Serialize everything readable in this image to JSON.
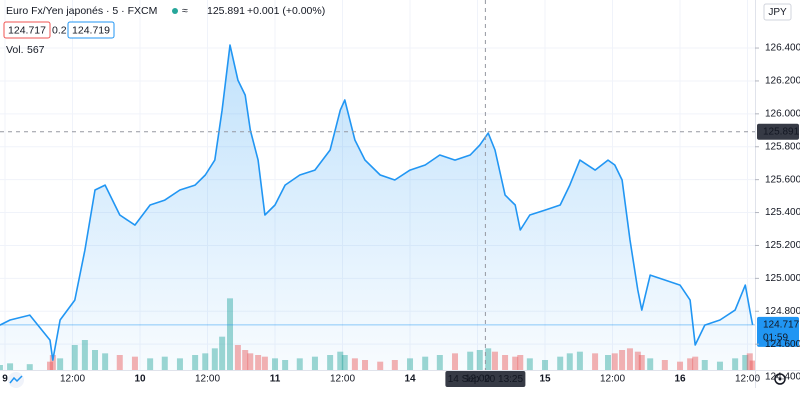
{
  "chart_data": {
    "type": "area",
    "title": "Euro Fx/Yen japonés · 5 · FXCM",
    "legend_price": 125.891,
    "legend_change": "+0.001 (+0.00%)",
    "bid": 124.717,
    "spread": 0.2,
    "ask": 124.719,
    "volume_title": "Vol.",
    "volume_last": 567,
    "currency": "JPY",
    "color": "#2196f3",
    "grid": true,
    "x": [
      -0.9,
      0.9,
      4.4,
      8.0,
      8.5,
      9.8,
      12.4,
      14.2,
      16.0,
      17.8,
      20.4,
      23.1,
      25.8,
      28.4,
      31.1,
      33.8,
      35.6,
      37.3,
      38.6,
      40.0,
      41.4,
      42.7,
      43.6,
      45.0,
      46.2,
      48.0,
      49.8,
      52.4,
      55.1,
      57.8,
      59.6,
      60.4,
      62.2,
      64.0,
      66.7,
      69.3,
      72.0,
      74.7,
      77.3,
      80.0,
      82.7,
      84.4,
      85.9,
      87.1,
      88.9,
      90.7,
      91.6,
      93.3,
      96.0,
      98.7,
      100.4,
      102.2,
      104.9,
      107.2,
      108.4,
      109.7,
      111.1,
      112.5,
      113.2,
      114.7,
      117.3,
      120.0,
      121.8,
      122.7,
      124.4,
      127.1,
      129.8,
      131.6,
      132.4,
      132.9
    ],
    "values": [
      124.716,
      124.747,
      124.777,
      124.625,
      124.503,
      124.747,
      124.868,
      125.172,
      125.537,
      125.567,
      125.385,
      125.324,
      125.446,
      125.476,
      125.537,
      125.567,
      125.628,
      125.719,
      126.023,
      126.418,
      126.205,
      126.114,
      125.902,
      125.719,
      125.385,
      125.446,
      125.567,
      125.628,
      125.658,
      125.78,
      126.023,
      126.084,
      125.841,
      125.719,
      125.628,
      125.598,
      125.658,
      125.689,
      125.75,
      125.719,
      125.75,
      125.81,
      125.883,
      125.78,
      125.506,
      125.446,
      125.294,
      125.385,
      125.415,
      125.446,
      125.567,
      125.719,
      125.658,
      125.719,
      125.689,
      125.598,
      125.233,
      124.929,
      124.807,
      125.02,
      124.99,
      124.959,
      124.868,
      124.595,
      124.716,
      124.747,
      124.807,
      124.959,
      124.807,
      124.717
    ],
    "volumes": [
      300,
      400,
      350,
      500,
      900,
      700,
      1500,
      1800,
      1200,
      1000,
      900,
      800,
      700,
      800,
      700,
      900,
      1000,
      1300,
      2000,
      4300,
      1500,
      1200,
      1000,
      900,
      800,
      700,
      600,
      700,
      800,
      900,
      1100,
      900,
      700,
      600,
      500,
      600,
      700,
      800,
      900,
      1000,
      1100,
      1200,
      1300,
      1100,
      900,
      800,
      900,
      700,
      600,
      800,
      1000,
      1100,
      1000,
      900,
      1000,
      1200,
      1300,
      1100,
      900,
      700,
      600,
      500,
      700,
      800,
      600,
      500,
      700,
      900,
      1000,
      567
    ],
    "vlim": [
      0,
      6000
    ],
    "xlim": [
      -0.89,
      133.33
    ],
    "xticks": [
      {
        "value": 0,
        "label": "9"
      },
      {
        "value": 12,
        "label": "12:00"
      },
      {
        "value": 24,
        "label": "10"
      },
      {
        "value": 36,
        "label": "12:00"
      },
      {
        "value": 48,
        "label": "11"
      },
      {
        "value": 60,
        "label": "12:00"
      },
      {
        "value": 72,
        "label": "14"
      },
      {
        "value": 84,
        "label": "12:00"
      },
      {
        "value": 96,
        "label": "15"
      },
      {
        "value": 108,
        "label": "12:00"
      },
      {
        "value": 120,
        "label": "16"
      },
      {
        "value": 132,
        "label": "12:00"
      }
    ],
    "ylim": [
      124.443,
      126.692
    ],
    "yticks": [
      {
        "value": 124.4,
        "label": "124.400"
      },
      {
        "value": 124.6,
        "label": "124.600"
      },
      {
        "value": 124.8,
        "label": "124.800"
      },
      {
        "value": 125,
        "label": "125.000"
      },
      {
        "value": 125.2,
        "label": "125.200"
      },
      {
        "value": 125.4,
        "label": "125.400"
      },
      {
        "value": 125.6,
        "label": "125.600"
      },
      {
        "value": 125.8,
        "label": "125.800"
      },
      {
        "value": 126,
        "label": "126.000"
      },
      {
        "value": 126.2,
        "label": "126.200"
      },
      {
        "value": 126.4,
        "label": "126.400"
      }
    ],
    "crosshair": {
      "x": 85.4,
      "x_label": "14 Sep '20   13:25",
      "value": 125.891
    },
    "last_price": 124.717,
    "countdown": "01:59"
  }
}
